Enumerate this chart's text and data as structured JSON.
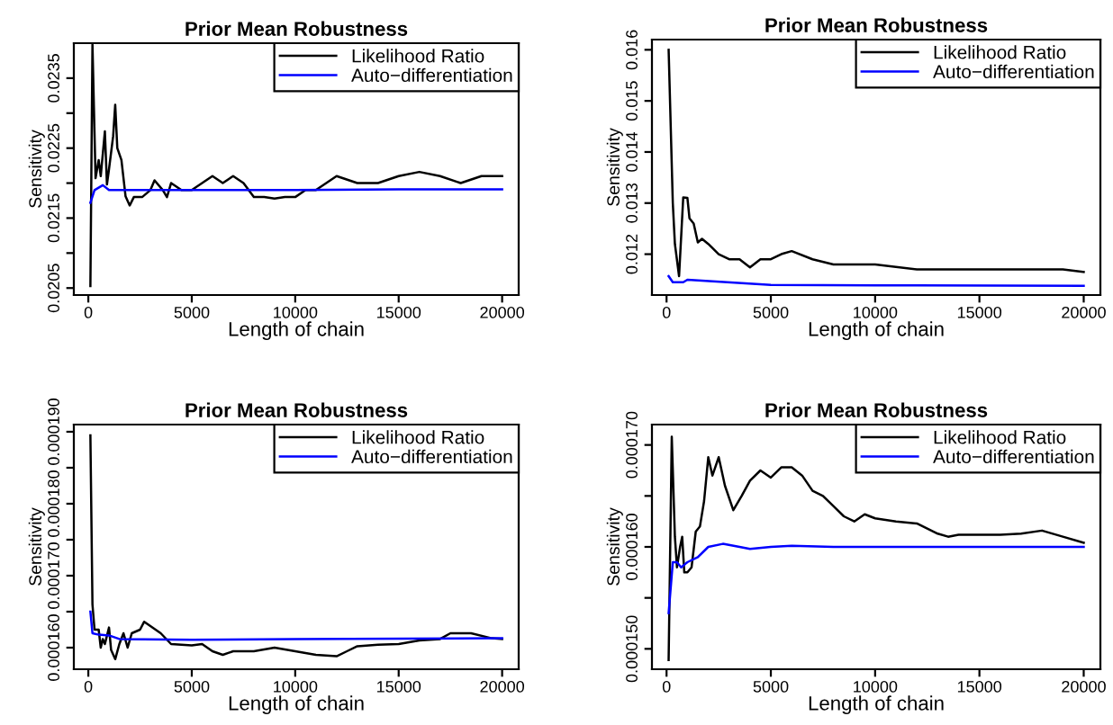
{
  "chart_data": [
    {
      "type": "line",
      "title": "Prior Mean Robustness",
      "xlabel": "Length of chain",
      "ylabel": "Sensitivity",
      "legend": "top right",
      "grid": false,
      "xlim": [
        -700,
        20800
      ],
      "xticks": [
        0,
        5000,
        10000,
        15000,
        20000
      ],
      "ylim": [
        0.0204,
        0.024
      ],
      "yticks": [
        0.0205,
        {
          "value": 0.021,
          "label": null
        },
        0.0215,
        {
          "value": 0.022,
          "label": null
        },
        0.0225,
        {
          "value": 0.023,
          "label": null
        },
        0.0235
      ],
      "series": [
        {
          "name": "Likelihood Ratio",
          "color": "#000000",
          "x": [
            100,
            200,
            350,
            500,
            600,
            800,
            900,
            1000,
            1200,
            1300,
            1400,
            1600,
            1800,
            2000,
            2200,
            2600,
            3000,
            3200,
            3600,
            3800,
            4000,
            4500,
            5000,
            5500,
            6000,
            6500,
            7000,
            7500,
            8000,
            8500,
            9000,
            9500,
            10000,
            10500,
            11000,
            12000,
            13000,
            14000,
            15000,
            16000,
            17000,
            18000,
            19000,
            20000
          ],
          "values": [
            0.02053,
            0.02398,
            0.02207,
            0.02233,
            0.0221,
            0.02274,
            0.02198,
            0.0222,
            0.02267,
            0.02312,
            0.0225,
            0.02233,
            0.02181,
            0.02168,
            0.0218,
            0.0218,
            0.0219,
            0.02204,
            0.0219,
            0.0218,
            0.022,
            0.0219,
            0.0219,
            0.022,
            0.0221,
            0.022,
            0.0221,
            0.022,
            0.0218,
            0.0218,
            0.02178,
            0.0218,
            0.0218,
            0.0219,
            0.0219,
            0.0221,
            0.022,
            0.022,
            0.0221,
            0.02216,
            0.0221,
            0.022,
            0.0221,
            0.0221
          ]
        },
        {
          "name": "Auto−differentiation",
          "color": "#0000ff",
          "x": [
            100,
            300,
            700,
            1000,
            2000,
            5000,
            10000,
            15000,
            20000
          ],
          "values": [
            0.02172,
            0.0219,
            0.02197,
            0.0219,
            0.0219,
            0.0219,
            0.0219,
            0.02191,
            0.02191
          ]
        }
      ]
    },
    {
      "type": "line",
      "title": "Prior Mean Robustness",
      "xlabel": "Length of chain",
      "ylabel": "Sensitivity",
      "legend": "top right",
      "grid": false,
      "xlim": [
        -700,
        20800
      ],
      "xticks": [
        0,
        5000,
        10000,
        15000,
        20000
      ],
      "ylim": [
        0.0112,
        0.0162
      ],
      "yticks": [
        0.012,
        0.013,
        0.014,
        0.015,
        0.016
      ],
      "series": [
        {
          "name": "Likelihood Ratio",
          "color": "#000000",
          "x": [
            100,
            300,
            400,
            600,
            800,
            1000,
            1100,
            1300,
            1500,
            1700,
            2000,
            2500,
            3000,
            3500,
            4000,
            4500,
            5000,
            5500,
            6000,
            7000,
            8000,
            9000,
            10000,
            12000,
            14000,
            16000,
            18000,
            19000,
            20000
          ],
          "values": [
            0.016,
            0.013,
            0.0122,
            0.01157,
            0.01311,
            0.0131,
            0.0127,
            0.0126,
            0.01223,
            0.0123,
            0.0122,
            0.012,
            0.0119,
            0.0119,
            0.01174,
            0.0119,
            0.0119,
            0.012,
            0.01206,
            0.0119,
            0.0118,
            0.0118,
            0.0118,
            0.0117,
            0.0117,
            0.0117,
            0.0117,
            0.0117,
            0.01165
          ]
        },
        {
          "name": "Auto−differentiation",
          "color": "#0000ff",
          "x": [
            100,
            300,
            800,
            1000,
            5000,
            10000,
            20000
          ],
          "values": [
            0.01157,
            0.01145,
            0.01145,
            0.0115,
            0.0114,
            0.01139,
            0.01138
          ]
        }
      ]
    },
    {
      "type": "line",
      "title": "Prior Mean Robustness",
      "xlabel": "Length of chain",
      "ylabel": "Sensitivity",
      "legend": "top right",
      "grid": false,
      "xlim": [
        -700,
        20800
      ],
      "xticks": [
        0,
        5000,
        10000,
        15000,
        20000
      ],
      "ylim": [
        0.000157,
        0.000191
      ],
      "yticks": [
        {
          "value": 0.00016,
          "label": "0.000160"
        },
        {
          "value": 0.000165,
          "label": null
        },
        {
          "value": 0.00017,
          "label": "0.000170"
        },
        {
          "value": 0.000175,
          "label": null
        },
        {
          "value": 0.00018,
          "label": "0.000180"
        },
        {
          "value": 0.000185,
          "label": null
        },
        {
          "value": 0.00019,
          "label": "0.000190"
        }
      ],
      "series": [
        {
          "name": "Likelihood Ratio",
          "color": "#000000",
          "x": [
            100,
            200,
            300,
            500,
            600,
            700,
            800,
            1000,
            1100,
            1300,
            1500,
            1700,
            1900,
            2100,
            2500,
            2700,
            3000,
            3500,
            4000,
            5000,
            5500,
            6000,
            6500,
            7000,
            8000,
            9000,
            10000,
            11000,
            12000,
            12500,
            13000,
            14000,
            15000,
            16000,
            17000,
            17500,
            18500,
            19500,
            20000
          ],
          "values": [
            0.0001895,
            0.000166,
            0.0001625,
            0.0001625,
            0.00016,
            0.0001612,
            0.0001605,
            0.0001628,
            0.0001597,
            0.0001584,
            0.0001605,
            0.000162,
            0.00016,
            0.000162,
            0.0001625,
            0.0001636,
            0.000163,
            0.000162,
            0.0001605,
            0.0001603,
            0.0001605,
            0.0001595,
            0.000159,
            0.0001595,
            0.0001595,
            0.00016,
            0.0001595,
            0.000159,
            0.0001588,
            0.0001595,
            0.0001602,
            0.0001604,
            0.0001605,
            0.000161,
            0.0001612,
            0.000162,
            0.000162,
            0.0001613,
            0.0001612
          ]
        },
        {
          "name": "Auto−differentiation",
          "color": "#0000ff",
          "x": [
            100,
            200,
            500,
            1000,
            1500,
            5000,
            10000,
            20000
          ],
          "values": [
            0.000165,
            0.000162,
            0.0001618,
            0.0001617,
            0.0001612,
            0.0001611,
            0.0001612,
            0.0001613
          ]
        }
      ]
    },
    {
      "type": "line",
      "title": "Prior Mean Robustness",
      "xlabel": "Length of chain",
      "ylabel": "Sensitivity",
      "legend": "top right",
      "grid": false,
      "xlim": [
        -700,
        20800
      ],
      "xticks": [
        0,
        5000,
        10000,
        15000,
        20000
      ],
      "ylim": [
        0.000148,
        0.000172
      ],
      "yticks": [
        {
          "value": 0.00015,
          "label": "0.000150"
        },
        {
          "value": 0.000155,
          "label": null
        },
        {
          "value": 0.00016,
          "label": "0.000160"
        },
        {
          "value": 0.000165,
          "label": null
        },
        {
          "value": 0.00017,
          "label": "0.000170"
        }
      ],
      "series": [
        {
          "name": "Likelihood Ratio",
          "color": "#000000",
          "x": [
            100,
            250,
            400,
            500,
            650,
            750,
            850,
            1000,
            1200,
            1400,
            1600,
            1800,
            2000,
            2200,
            2500,
            2800,
            3200,
            3600,
            4000,
            4500,
            5000,
            5500,
            6000,
            6500,
            7000,
            7500,
            8000,
            8500,
            9000,
            9500,
            10000,
            11000,
            12000,
            13000,
            13500,
            14000,
            15000,
            16000,
            17000,
            18000,
            19000,
            20000
          ],
          "values": [
            0.0001489,
            0.0001708,
            0.000161,
            0.000158,
            0.00016,
            0.000161,
            0.0001575,
            0.0001575,
            0.000158,
            0.0001615,
            0.000162,
            0.0001645,
            0.0001688,
            0.000167,
            0.0001688,
            0.000166,
            0.0001636,
            0.000165,
            0.0001665,
            0.0001675,
            0.0001668,
            0.0001678,
            0.0001678,
            0.000167,
            0.0001655,
            0.000165,
            0.000164,
            0.000163,
            0.0001625,
            0.0001632,
            0.0001628,
            0.0001625,
            0.0001623,
            0.0001613,
            0.000161,
            0.0001612,
            0.0001612,
            0.0001612,
            0.0001613,
            0.0001616,
            0.000161,
            0.0001604
          ]
        },
        {
          "name": "Auto−differentiation",
          "color": "#0000ff",
          "x": [
            100,
            300,
            500,
            700,
            1000,
            1500,
            2000,
            2700,
            3500,
            4000,
            5000,
            6000,
            8000,
            20000
          ],
          "values": [
            0.0001535,
            0.0001585,
            0.0001585,
            0.000158,
            0.0001585,
            0.000159,
            0.00016,
            0.0001603,
            0.00016,
            0.0001598,
            0.00016,
            0.0001601,
            0.00016,
            0.00016
          ]
        }
      ]
    }
  ]
}
